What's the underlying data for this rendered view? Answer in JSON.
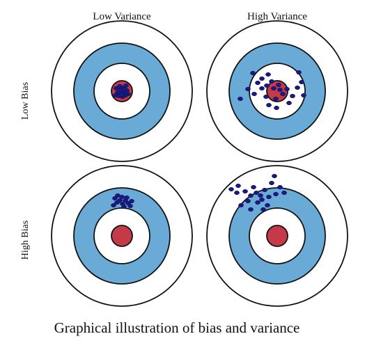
{
  "columns": [
    "Low Variance",
    "High Variance"
  ],
  "rows": [
    "Low Bias",
    "High Bias"
  ],
  "caption": "Graphical illustration of bias and variance",
  "colors": {
    "ring_outline": "#111111",
    "ring_white": "#ffffff",
    "ring_blue": "#6aaad6",
    "bullseye": "#c53a48",
    "shot": "#1a1a80"
  },
  "targets": [
    {
      "row": "Low Bias",
      "column": "Low Variance"
    },
    {
      "row": "Low Bias",
      "column": "High Variance"
    },
    {
      "row": "High Bias",
      "column": "Low Variance"
    },
    {
      "row": "High Bias",
      "column": "High Variance"
    }
  ]
}
